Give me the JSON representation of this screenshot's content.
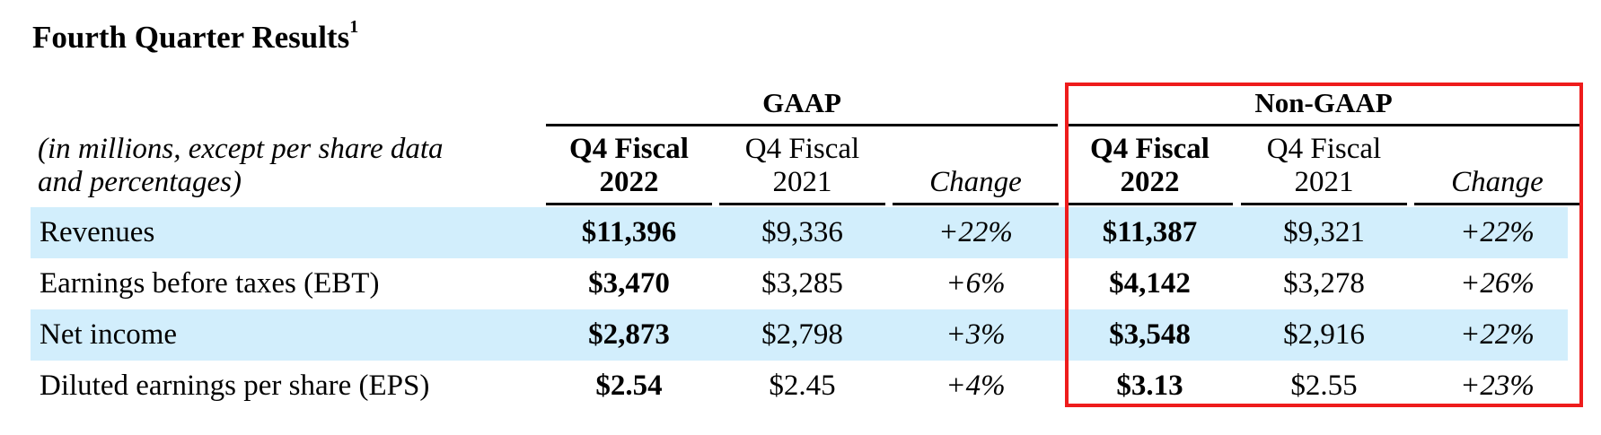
{
  "title": "Fourth Quarter Results",
  "title_footnote": "1",
  "description_line1": "(in millions, except per share data",
  "description_line2": "and percentages)",
  "groups": {
    "gaap": "GAAP",
    "non_gaap": "Non-GAAP"
  },
  "columns": {
    "cur_line1": "Q4 Fiscal",
    "cur_line2": "2022",
    "prev_line1": "Q4 Fiscal",
    "prev_line2": "2021",
    "change": "Change"
  },
  "rows": [
    {
      "label": "Revenues",
      "gaap_cur": "$11,396",
      "gaap_prev": "$9,336",
      "gaap_change": "+22%",
      "ng_cur": "$11,387",
      "ng_prev": "$9,321",
      "ng_change": "+22%"
    },
    {
      "label": "Earnings before taxes (EBT)",
      "gaap_cur": "$3,470",
      "gaap_prev": "$3,285",
      "gaap_change": "+6%",
      "ng_cur": "$4,142",
      "ng_prev": "$3,278",
      "ng_change": "+26%"
    },
    {
      "label": "Net income",
      "gaap_cur": "$2,873",
      "gaap_prev": "$2,798",
      "gaap_change": "+3%",
      "ng_cur": "$3,548",
      "ng_prev": "$2,916",
      "ng_change": "+22%"
    },
    {
      "label": "Diluted earnings per share (EPS)",
      "gaap_cur": "$2.54",
      "gaap_prev": "$2.45",
      "gaap_change": "+4%",
      "ng_cur": "$3.13",
      "ng_prev": "$2.55",
      "ng_change": "+23%"
    }
  ],
  "colors": {
    "row_shade": "#d2eefc",
    "highlight_border": "#ee1c1c"
  }
}
